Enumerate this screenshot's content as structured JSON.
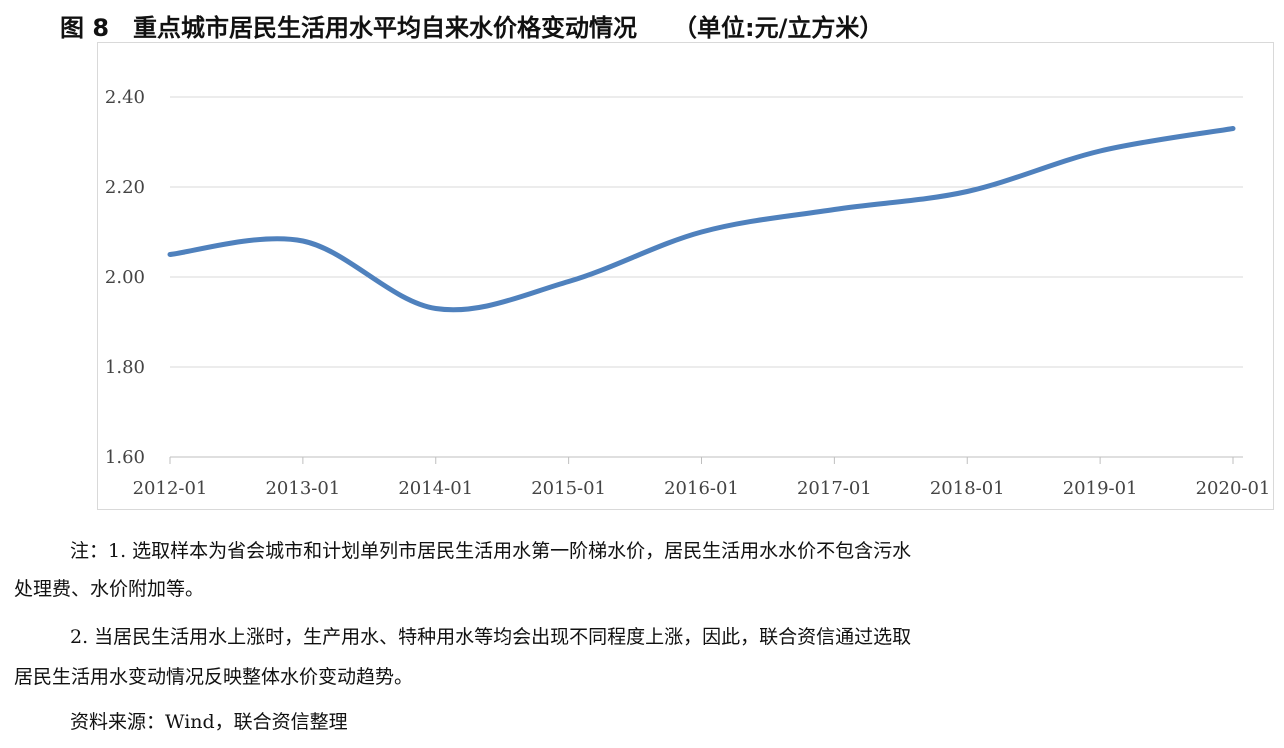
{
  "title": "图 8　重点城市居民生活用水平均自来水价格变动情况　　（单位:元/立方米）",
  "chart_data": {
    "type": "line",
    "title": "图 8　重点城市居民生活用水平均自来水价格变动情况",
    "unit": "（单位:元/立方米）",
    "categories": [
      "2012-01",
      "2013-01",
      "2014-01",
      "2015-01",
      "2016-01",
      "2017-01",
      "2018-01",
      "2019-01",
      "2020-01"
    ],
    "series": [
      {
        "values": [
          2.05,
          2.08,
          1.93,
          1.99,
          2.1,
          2.15,
          2.19,
          2.28,
          2.33
        ]
      }
    ],
    "yticks": [
      "1.60",
      "1.80",
      "2.00",
      "2.20",
      "2.40"
    ],
    "ylim": [
      1.6,
      2.4
    ],
    "grid": true,
    "line_color": "#4f81bd",
    "xlabel": "",
    "ylabel": ""
  },
  "notes": [
    "注：1. 选取样本为省会城市和计划单列市居民生活用水第一阶梯水价，居民生活用水水价不包含污水",
    "处理费、水价附加等。",
    "2. 当居民生活用水上涨时，生产用水、特种用水等均会出现不同程度上涨，因此，联合资信通过选取",
    "居民生活用水变动情况反映整体水价变动趋势。",
    "资料来源：Wind，联合资信整理"
  ]
}
